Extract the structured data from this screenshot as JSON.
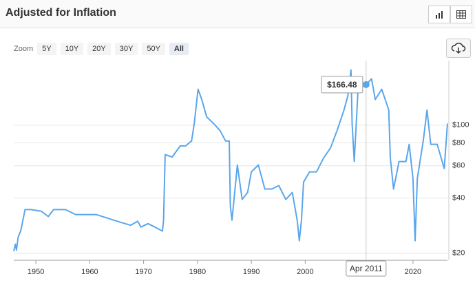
{
  "header": {
    "title": "Adjusted for Inflation"
  },
  "zoom": {
    "label": "Zoom",
    "options": [
      "5Y",
      "10Y",
      "20Y",
      "30Y",
      "50Y",
      "All"
    ],
    "selected": "All"
  },
  "chart_data": {
    "type": "line",
    "log_scale": true,
    "color": "#5aa6ec",
    "grid": true,
    "x": [
      1945.9,
      1946.2,
      1946.4,
      1946.7,
      1947.2,
      1948.0,
      1949.1,
      1951.0,
      1952.3,
      1953.3,
      1955.5,
      1957.4,
      1961.2,
      1965.1,
      1967.6,
      1968.9,
      1969.5,
      1970.8,
      1972.1,
      1973.5,
      1973.7,
      1974.0,
      1975.3,
      1976.8,
      1977.8,
      1978.9,
      1979.4,
      1980.1,
      1980.8,
      1981.7,
      1983.0,
      1984.2,
      1985.2,
      1985.9,
      1986.1,
      1986.4,
      1987.4,
      1988.3,
      1989.3,
      1990.0,
      1991.3,
      1992.5,
      1993.8,
      1995.1,
      1996.4,
      1997.6,
      1998.5,
      1998.9,
      1999.3,
      1999.7,
      2000.8,
      2002.1,
      2003.4,
      2004.7,
      2005.9,
      2007.2,
      2007.9,
      2008.5,
      2008.7,
      2009.1,
      2009.8,
      2011.3,
      2012.3,
      2013.0,
      2014.2,
      2015.5,
      2015.8,
      2016.4,
      2017.4,
      2018.7,
      2019.3,
      2020.0,
      2020.4,
      2020.8,
      2021.9,
      2022.6,
      2023.3,
      2024.5,
      2025.8,
      2026.4
    ],
    "values": [
      20.5,
      22.4,
      20.8,
      24.4,
      26.6,
      34.6,
      34.6,
      33.9,
      31.7,
      34.6,
      34.6,
      32.5,
      32.5,
      29.9,
      28.4,
      29.9,
      27.8,
      29.0,
      27.8,
      26.4,
      30.3,
      69.0,
      67.0,
      77.0,
      77.0,
      82.0,
      102,
      157,
      138,
      111,
      102,
      93.3,
      82.0,
      82.0,
      36.1,
      30.3,
      60.6,
      39.3,
      42.9,
      55.6,
      60.6,
      44.8,
      44.8,
      46.8,
      39.3,
      42.9,
      30.3,
      23.4,
      30.3,
      48.9,
      55.6,
      55.6,
      66.1,
      75.2,
      93.3,
      121,
      144,
      200,
      102,
      63.3,
      157,
      166.48,
      179,
      138,
      157,
      121,
      66.1,
      44.8,
      63.3,
      63.3,
      78.6,
      51.0,
      23.4,
      51.0,
      82.0,
      121,
      78.6,
      78.6,
      58.0,
      102
    ],
    "xlim": [
      1945.9,
      2026.4
    ],
    "xticks": [
      1950,
      1960,
      1970,
      1980,
      1990,
      2000,
      2010,
      2020
    ],
    "ylim": [
      18.3,
      225
    ],
    "yticks": [
      {
        "value": 20,
        "label": "$20"
      },
      {
        "value": 40,
        "label": "$40"
      },
      {
        "value": 60,
        "label": "$60"
      },
      {
        "value": 80,
        "label": "$80"
      },
      {
        "value": 100,
        "label": "$100"
      }
    ],
    "highlight": {
      "x": 2011.3,
      "x_label": "Apr 2011",
      "value": 166.48,
      "value_label": "$166.48"
    }
  }
}
